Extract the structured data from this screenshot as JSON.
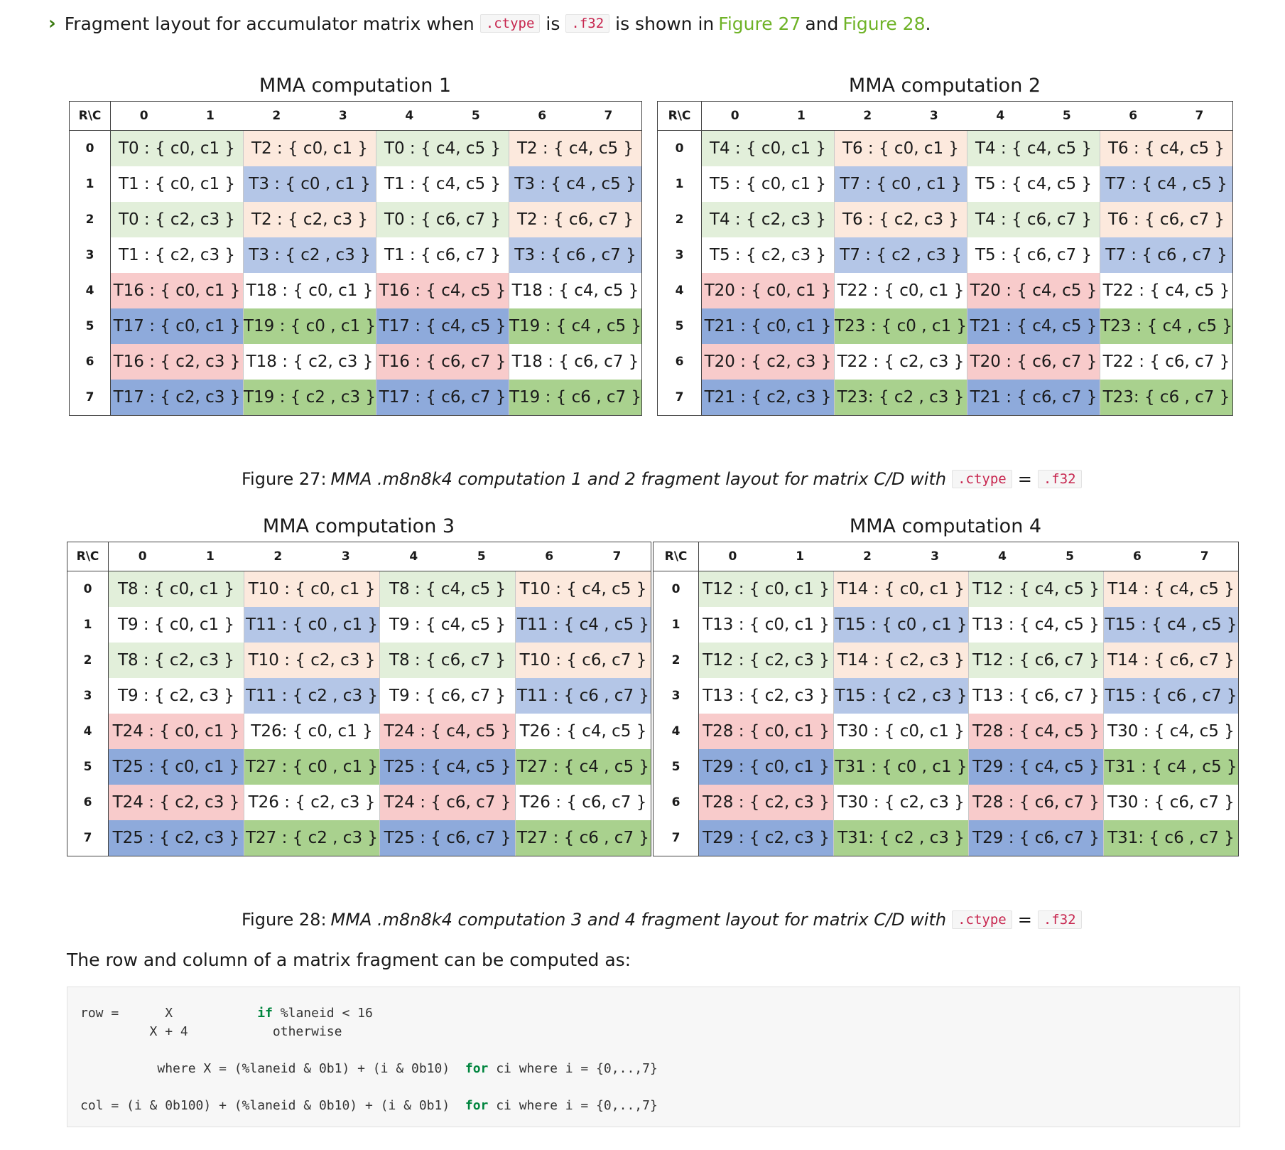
{
  "intro": {
    "prefix": "Fragment layout for accumulator matrix when",
    "code1": ".ctype",
    "mid1": "is",
    "code2": ".f32",
    "mid2": "is shown in",
    "link1": "Figure 27",
    "and": "and",
    "link2": "Figure 28",
    "suffix": "."
  },
  "header_labels": {
    "rc": "R\\C",
    "cols": [
      "0",
      "1",
      "2",
      "3",
      "4",
      "5",
      "6",
      "7"
    ]
  },
  "figures": [
    {
      "caption_prefix": "Figure 27:",
      "caption_text": "MMA .m8n8k4 computation 1 and 2 fragment layout for matrix C/D with",
      "caption_code1": ".ctype",
      "caption_eq": "=",
      "caption_code2": ".f32",
      "tables": [
        {
          "title": "MMA computation 1",
          "rows": [
            {
              "label": "0",
              "cells": [
                "T0 : { c0, c1 }",
                "T2 : { c0, c1 }",
                "T0 : { c4, c5 }",
                "T2 : { c4, c5 }"
              ]
            },
            {
              "label": "1",
              "cells": [
                "T1 : { c0, c1 }",
                "T3 : { c0 , c1 }",
                "T1 : { c4, c5 }",
                "T3 : { c4 , c5 }"
              ]
            },
            {
              "label": "2",
              "cells": [
                "T0 : { c2, c3 }",
                "T2 : { c2, c3 }",
                "T0 : { c6, c7 }",
                "T2 : { c6, c7 }"
              ]
            },
            {
              "label": "3",
              "cells": [
                "T1 : { c2, c3 }",
                "T3 : { c2 , c3 }",
                "T1 : { c6, c7 }",
                "T3 : { c6 , c7 }"
              ]
            },
            {
              "label": "4",
              "cells": [
                "T16 : { c0, c1 }",
                "T18 : { c0, c1 }",
                "T16 : { c4, c5 }",
                "T18 : { c4, c5 }"
              ]
            },
            {
              "label": "5",
              "cells": [
                "T17 : { c0, c1 }",
                "T19 : { c0 , c1 }",
                "T17 : { c4, c5 }",
                "T19 : { c4 , c5 }"
              ]
            },
            {
              "label": "6",
              "cells": [
                "T16 : { c2, c3 }",
                "T18 : { c2, c3 }",
                "T16 : { c6, c7 }",
                "T18 : { c6, c7 }"
              ]
            },
            {
              "label": "7",
              "cells": [
                "T17 : { c2, c3 }",
                "T19 : { c2 , c3 }",
                "T17 : { c6, c7 }",
                "T19 : { c6 , c7 }"
              ]
            }
          ]
        },
        {
          "title": "MMA computation 2",
          "rows": [
            {
              "label": "0",
              "cells": [
                "T4 : { c0, c1 }",
                "T6 : { c0, c1 }",
                "T4 : { c4, c5 }",
                "T6 : { c4, c5 }"
              ]
            },
            {
              "label": "1",
              "cells": [
                "T5 : { c0, c1 }",
                "T7 : { c0 , c1 }",
                "T5 : { c4, c5 }",
                "T7 : { c4 , c5 }"
              ]
            },
            {
              "label": "2",
              "cells": [
                "T4 : { c2, c3 }",
                "T6 : { c2, c3 }",
                "T4 : { c6, c7 }",
                "T6 : { c6, c7 }"
              ]
            },
            {
              "label": "3",
              "cells": [
                "T5 : { c2, c3 }",
                "T7 : { c2 , c3 }",
                "T5 : { c6, c7 }",
                "T7 : { c6 , c7 }"
              ]
            },
            {
              "label": "4",
              "cells": [
                "T20 : { c0, c1 }",
                "T22 : { c0, c1 }",
                "T20 : { c4, c5 }",
                "T22 : { c4, c5 }"
              ]
            },
            {
              "label": "5",
              "cells": [
                "T21 : { c0, c1 }",
                "T23 : { c0 , c1 }",
                "T21 : { c4, c5 }",
                "T23 : { c4 , c5 }"
              ]
            },
            {
              "label": "6",
              "cells": [
                "T20 : { c2, c3 }",
                "T22 : { c2, c3 }",
                "T20 : { c6, c7 }",
                "T22 : { c6, c7 }"
              ]
            },
            {
              "label": "7",
              "cells": [
                "T21 : { c2, c3 }",
                "T23: { c2 , c3 }",
                "T21 : { c6, c7 }",
                "T23: { c6 , c7 }"
              ]
            }
          ]
        }
      ]
    },
    {
      "caption_prefix": "Figure 28:",
      "caption_text": "MMA .m8n8k4 computation 3 and 4 fragment layout for matrix C/D with",
      "caption_code1": ".ctype",
      "caption_eq": "=",
      "caption_code2": ".f32",
      "tables": [
        {
          "title": "MMA computation 3",
          "rows": [
            {
              "label": "0",
              "cells": [
                "T8 : { c0, c1 }",
                "T10 : { c0, c1 }",
                "T8 : { c4, c5 }",
                "T10 : { c4, c5 }"
              ]
            },
            {
              "label": "1",
              "cells": [
                "T9 : { c0, c1 }",
                "T11 : { c0 , c1 }",
                "T9 : { c4, c5 }",
                "T11 : { c4 , c5 }"
              ]
            },
            {
              "label": "2",
              "cells": [
                "T8 : { c2, c3 }",
                "T10 : { c2, c3 }",
                "T8 : { c6, c7 }",
                "T10 : { c6, c7 }"
              ]
            },
            {
              "label": "3",
              "cells": [
                "T9 : { c2, c3 }",
                "T11 : { c2 , c3 }",
                "T9 : { c6, c7 }",
                "T11 : { c6 , c7 }"
              ]
            },
            {
              "label": "4",
              "cells": [
                "T24 : { c0, c1 }",
                "T26: { c0, c1 }",
                "T24 : { c4, c5 }",
                "T26 : { c4, c5 }"
              ]
            },
            {
              "label": "5",
              "cells": [
                "T25 : { c0, c1 }",
                "T27 : { c0 , c1 }",
                "T25 : { c4, c5 }",
                "T27 : { c4 , c5 }"
              ]
            },
            {
              "label": "6",
              "cells": [
                "T24 : { c2, c3 }",
                "T26 : { c2, c3 }",
                "T24 : { c6, c7 }",
                "T26 : { c6, c7 }"
              ]
            },
            {
              "label": "7",
              "cells": [
                "T25 : { c2, c3 }",
                "T27 : { c2 , c3 }",
                "T25 : { c6, c7 }",
                "T27 : { c6 , c7 }"
              ]
            }
          ]
        },
        {
          "title": "MMA computation 4",
          "rows": [
            {
              "label": "0",
              "cells": [
                "T12 : { c0, c1 }",
                "T14 : { c0, c1 }",
                "T12 : { c4, c5 }",
                "T14 : { c4, c5 }"
              ]
            },
            {
              "label": "1",
              "cells": [
                "T13 : { c0, c1 }",
                "T15 : { c0 , c1 }",
                "T13 : { c4, c5 }",
                "T15 : { c4 , c5 }"
              ]
            },
            {
              "label": "2",
              "cells": [
                "T12 : { c2, c3 }",
                "T14 : { c2, c3 }",
                "T12 : { c6, c7 }",
                "T14 : { c6, c7 }"
              ]
            },
            {
              "label": "3",
              "cells": [
                "T13 : { c2, c3 }",
                "T15 : { c2 , c3 }",
                "T13 : { c6, c7 }",
                "T15 : { c6 , c7 }"
              ]
            },
            {
              "label": "4",
              "cells": [
                "T28 : { c0, c1 }",
                "T30 : { c0, c1 }",
                "T28 : { c4, c5 }",
                "T30 : { c4, c5 }"
              ]
            },
            {
              "label": "5",
              "cells": [
                "T29 : { c0, c1 }",
                "T31 : { c0 , c1 }",
                "T29 : { c4, c5 }",
                "T31 : { c4 , c5 }"
              ]
            },
            {
              "label": "6",
              "cells": [
                "T28 : { c2, c3 }",
                "T30 : { c2, c3 }",
                "T28 : { c6, c7 }",
                "T30 : { c6, c7 }"
              ]
            },
            {
              "label": "7",
              "cells": [
                "T29 : { c2, c3 }",
                "T31: { c2 , c3 }",
                "T29 : { c6, c7 }",
                "T31: { c6 , c7 }"
              ]
            }
          ]
        }
      ]
    }
  ],
  "cell_colors": {
    "light_green": "#e2efda",
    "peach": "#fce9dd",
    "white": "#ffffff",
    "light_blue": "#b4c6e7",
    "pink": "#f8cbcb",
    "medium_blue": "#8eaadb",
    "medium_green": "#a9d18e"
  },
  "paragraph": "The row and column of a matrix fragment can be computed as:",
  "code": {
    "l1_a": "row =      X           ",
    "l1_kw": "if",
    "l1_b": " %laneid < 16",
    "l2": "         X + 4           otherwise",
    "l3_a": "          where X = (%laneid & 0b1) + (i & 0b10)  ",
    "l3_kw": "for",
    "l3_b": " ci where i = {0,..,7}",
    "l4_a": "col = (i & 0b100) + (%laneid & 0b10) + (i & 0b1)  ",
    "l4_kw": "for",
    "l4_b": " ci where i = {0,..,7}"
  }
}
